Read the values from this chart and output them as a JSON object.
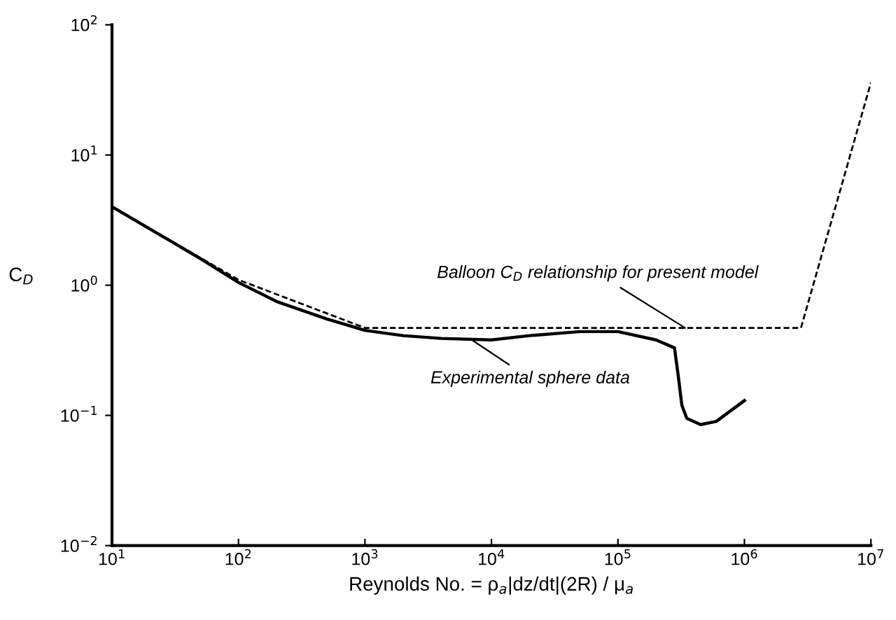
{
  "chart_data": {
    "type": "line",
    "xlabel": "Reynolds No. = ρ$_{a}$|dz/dt|(2R) / μ$_{a}$",
    "ylabel": "C$_{D}$",
    "log": "xy",
    "xlim": [
      10,
      10000000
    ],
    "ylim": [
      0.01,
      100
    ],
    "xticks": [
      {
        "value": 10,
        "label": "10$^{1}$"
      },
      {
        "value": 100,
        "label": "10$^{2}$"
      },
      {
        "value": 1000,
        "label": "10$^{3}$"
      },
      {
        "value": 10000,
        "label": "10$^{4}$"
      },
      {
        "value": 100000,
        "label": "10$^{5}$"
      },
      {
        "value": 1000000,
        "label": "10$^{6}$"
      },
      {
        "value": 10000000,
        "label": "10$^{7}$"
      }
    ],
    "yticks": [
      {
        "value": 0.01,
        "label": "10$^{−2}$"
      },
      {
        "value": 0.1,
        "label": "10$^{−1}$"
      },
      {
        "value": 1,
        "label": "10$^{0}$"
      },
      {
        "value": 10,
        "label": "10$^{1}$"
      },
      {
        "value": 100,
        "label": "10$^{2}$"
      }
    ],
    "grid": false,
    "marker": "none",
    "series": [
      {
        "color": "#000000",
        "line_style": "solid",
        "x": [
          10,
          20,
          50,
          100,
          200,
          500,
          1000,
          2000,
          4000,
          10000,
          20000,
          50000,
          100000,
          200000,
          280000,
          300000,
          320000,
          350000,
          450000,
          600000,
          1000000
        ],
        "values": [
          4.0,
          2.7,
          1.6,
          1.05,
          0.75,
          0.55,
          0.45,
          0.41,
          0.39,
          0.38,
          0.41,
          0.44,
          0.44,
          0.38,
          0.33,
          0.2,
          0.12,
          0.095,
          0.085,
          0.09,
          0.13
        ]
      },
      {
        "color": "#000000",
        "line_style": "dashed",
        "x": [
          10,
          100,
          1000,
          2800000,
          10000000
        ],
        "values": [
          4.0,
          1.1,
          0.47,
          0.47,
          36
        ]
      }
    ],
    "annotations": [
      {
        "text": "Balloon C$_{D}$ relationship for present model",
        "x": 340000,
        "y": 0.47
      },
      {
        "text": "Experimental sphere data",
        "x": 7000,
        "y": 0.38
      }
    ]
  }
}
